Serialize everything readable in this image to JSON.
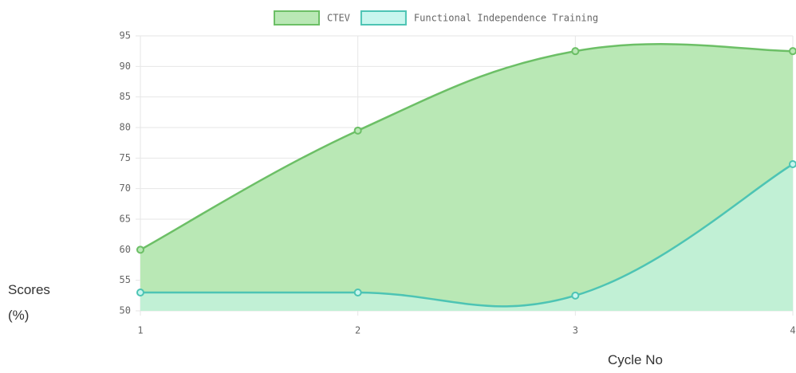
{
  "chart_data": {
    "type": "line",
    "categories": [
      "1",
      "2",
      "3",
      "4"
    ],
    "series": [
      {
        "name": "CTEV",
        "color": "#6cbf66",
        "fill": "#b9e8b5",
        "values": [
          60,
          79.5,
          92.5,
          92.5
        ]
      },
      {
        "name": "Functional Independence Training",
        "color": "#4dc4b4",
        "fill": "#c8f6ee",
        "values": [
          53,
          53,
          52.5,
          74
        ]
      }
    ],
    "ylim": [
      50,
      95
    ],
    "yticks": [
      50,
      55,
      60,
      65,
      70,
      75,
      80,
      85,
      90,
      95
    ],
    "y_label": "Scores (%)",
    "x_label": "Cycle No",
    "grid": true,
    "legend": "top",
    "area": true
  }
}
